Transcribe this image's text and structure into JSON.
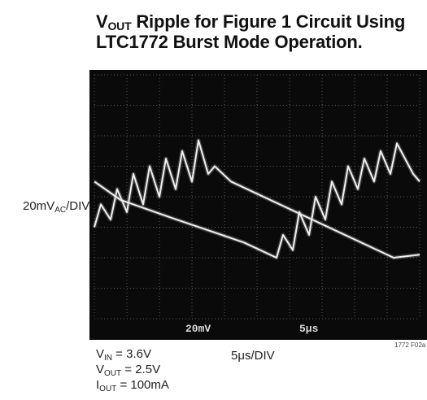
{
  "chart_data": {
    "type": "line",
    "title": {
      "line1_prefix": "V",
      "line1_sub": "OUT",
      "line1_suffix": " Ripple for Figure 1 Circuit Using",
      "line2": "LTC1772 Burst Mode Operation."
    },
    "ylabel": {
      "prefix": "20mV",
      "sub": "AC",
      "suffix": "/DIV"
    },
    "xlabel": "5μs/DIV",
    "figure_id": "1772 F02a",
    "screen_text": {
      "volts_setting": "20mV",
      "time_setting": "5μs"
    },
    "grid": true,
    "divisions": {
      "x": 10,
      "y": 8
    },
    "xlim": [
      0,
      50
    ],
    "ylim": [
      -80,
      80
    ],
    "series": [
      {
        "color": "#f0f0f0",
        "x": [
          0,
          1,
          2.5,
          3.5,
          5,
          6,
          7.5,
          8.5,
          10,
          11,
          12.5,
          13.5,
          15,
          16,
          17.5,
          18.5,
          21,
          46,
          48,
          50
        ],
        "y": [
          -20,
          -5,
          -15,
          5,
          -10,
          15,
          -5,
          20,
          0,
          25,
          5,
          30,
          10,
          37,
          15,
          20,
          10,
          -40,
          -39,
          -38
        ]
      },
      {
        "color": "#f0f0f0",
        "x": [
          0,
          4,
          12,
          23,
          28,
          29,
          30.5,
          31.5,
          33,
          34,
          35.5,
          36.5,
          38,
          39,
          40.5,
          41.5,
          43,
          44,
          45.5,
          46.5,
          49,
          50
        ],
        "y": [
          10,
          -2,
          -14,
          -30,
          -40,
          -25,
          -35,
          -10,
          -25,
          0,
          -15,
          10,
          -5,
          20,
          5,
          25,
          10,
          30,
          15,
          35,
          15,
          10
        ]
      }
    ]
  },
  "conditions": [
    {
      "prefix": "V",
      "sub": "IN",
      "suffix": " = 3.6V"
    },
    {
      "prefix": "V",
      "sub": "OUT",
      "suffix": " = 2.5V"
    },
    {
      "prefix": "I",
      "sub": "OUT",
      "suffix": " = 100mA"
    }
  ]
}
